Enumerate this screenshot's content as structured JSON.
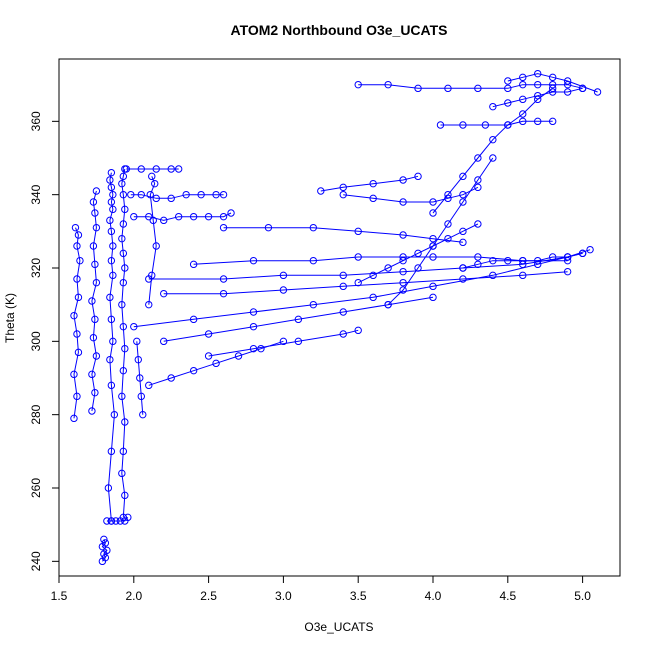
{
  "chart_data": {
    "type": "scatter",
    "title": "ATOM2 Northbound O3e_UCATS",
    "xlabel": "O3e_UCATS",
    "ylabel": "Theta (K)",
    "xlim": [
      1.5,
      5.25
    ],
    "ylim": [
      236,
      377
    ],
    "x_ticks": [
      1.5,
      2.0,
      2.5,
      3.0,
      3.5,
      4.0,
      4.5,
      5.0
    ],
    "x_tick_labels": [
      "1.5",
      "2.0",
      "2.5",
      "3.0",
      "3.5",
      "4.0",
      "4.5",
      "5.0"
    ],
    "y_ticks": [
      240,
      260,
      280,
      300,
      320,
      340,
      360
    ],
    "y_tick_labels": [
      "240",
      "260",
      "280",
      "300",
      "320",
      "340",
      "360"
    ],
    "grid": false,
    "series_color": "#0000ff",
    "series": [
      {
        "x": [
          1.85,
          1.83,
          1.85,
          1.87,
          1.85,
          1.84,
          1.86,
          1.85,
          1.84,
          1.86,
          1.85,
          1.86,
          1.85,
          1.84,
          1.86,
          1.85,
          1.86,
          1.85,
          1.84,
          1.85
        ],
        "y": [
          251,
          260,
          270,
          280,
          288,
          295,
          300,
          306,
          312,
          318,
          322,
          326,
          330,
          333,
          336,
          338,
          340,
          342,
          344,
          346
        ]
      },
      {
        "x": [
          1.93,
          1.94,
          1.92,
          1.93,
          1.94,
          1.92,
          1.93,
          1.94,
          1.93,
          1.92,
          1.93,
          1.94,
          1.93,
          1.92,
          1.93,
          1.94,
          1.93,
          1.92,
          1.93,
          1.94
        ],
        "y": [
          252,
          258,
          264,
          270,
          278,
          285,
          292,
          298,
          304,
          310,
          316,
          320,
          324,
          328,
          332,
          336,
          340,
          343,
          345,
          347
        ]
      },
      {
        "x": [
          1.6,
          1.62,
          1.6,
          1.63,
          1.62,
          1.6,
          1.63,
          1.62,
          1.64,
          1.62,
          1.63,
          1.61
        ],
        "y": [
          279,
          285,
          291,
          297,
          302,
          307,
          312,
          317,
          322,
          326,
          329,
          331
        ]
      },
      {
        "x": [
          1.72,
          1.74,
          1.72,
          1.75,
          1.73,
          1.74,
          1.72,
          1.75,
          1.74,
          1.73,
          1.75,
          1.74,
          1.73,
          1.75
        ],
        "y": [
          281,
          286,
          291,
          296,
          301,
          306,
          311,
          316,
          321,
          326,
          331,
          335,
          338,
          341
        ]
      },
      {
        "x": [
          1.79,
          1.81,
          1.8,
          1.82,
          1.79,
          1.81,
          1.8
        ],
        "y": [
          240,
          241,
          242,
          243,
          244,
          245,
          246
        ]
      },
      {
        "x": [
          1.82,
          1.85,
          1.88,
          1.91,
          1.94,
          1.96
        ],
        "y": [
          251,
          251,
          251,
          251,
          251,
          252
        ]
      },
      {
        "x": [
          1.98,
          2.05,
          2.15,
          2.25,
          2.35,
          2.45,
          2.55,
          2.6
        ],
        "y": [
          340,
          340,
          339,
          339,
          340,
          340,
          340,
          340
        ]
      },
      {
        "x": [
          1.95,
          2.05,
          2.15,
          2.25,
          2.3
        ],
        "y": [
          347,
          347,
          347,
          347,
          347
        ]
      },
      {
        "x": [
          2.0,
          2.1,
          2.2,
          2.3,
          2.4,
          2.5,
          2.6,
          2.65
        ],
        "y": [
          334,
          334,
          333,
          334,
          334,
          334,
          334,
          335
        ]
      },
      {
        "x": [
          2.02,
          2.04,
          2.06,
          2.05,
          2.03
        ],
        "y": [
          300,
          290,
          280,
          285,
          295
        ]
      },
      {
        "x": [
          2.1,
          2.12,
          2.15,
          2.13,
          2.11,
          2.14,
          2.12
        ],
        "y": [
          310,
          318,
          326,
          333,
          340,
          343,
          345
        ]
      },
      {
        "x": [
          2.5,
          2.8,
          3.1,
          3.4,
          3.5
        ],
        "y": [
          296,
          298,
          300,
          302,
          303
        ]
      },
      {
        "x": [
          2.0,
          2.4,
          2.8,
          3.2,
          3.6,
          4.0,
          4.4,
          4.7,
          4.9,
          5.0
        ],
        "y": [
          304,
          306,
          308,
          310,
          312,
          315,
          318,
          321,
          323,
          324
        ]
      },
      {
        "x": [
          2.1,
          2.6,
          3.0,
          3.4,
          3.8,
          4.2,
          4.6,
          4.9,
          5.05
        ],
        "y": [
          317,
          317,
          318,
          318,
          319,
          320,
          321,
          323,
          325
        ]
      },
      {
        "x": [
          2.2,
          2.6,
          3.0,
          3.4,
          3.8,
          4.2,
          4.6,
          4.9
        ],
        "y": [
          313,
          313,
          314,
          315,
          316,
          317,
          318,
          319
        ]
      },
      {
        "x": [
          2.4,
          2.8,
          3.2,
          3.5,
          3.8,
          4.0,
          4.3,
          4.6,
          4.9
        ],
        "y": [
          321,
          322,
          322,
          323,
          323,
          323,
          323,
          322,
          322
        ]
      },
      {
        "x": [
          2.6,
          2.9,
          3.2,
          3.5,
          3.8,
          4.0,
          4.2
        ],
        "y": [
          331,
          331,
          331,
          330,
          329,
          328,
          327
        ]
      },
      {
        "x": [
          3.5,
          3.6,
          3.7,
          3.8,
          3.9,
          4.0,
          4.1,
          4.2,
          4.3
        ],
        "y": [
          316,
          318,
          320,
          322,
          324,
          326,
          328,
          330,
          332
        ]
      },
      {
        "x": [
          3.4,
          3.6,
          3.8,
          4.0,
          4.1,
          4.2,
          4.3
        ],
        "y": [
          340,
          339,
          338,
          338,
          339,
          340,
          342
        ]
      },
      {
        "x": [
          3.25,
          3.4,
          3.6,
          3.8,
          3.9
        ],
        "y": [
          341,
          342,
          343,
          344,
          345
        ]
      },
      {
        "x": [
          3.7,
          3.8,
          3.9,
          4.0,
          4.1,
          4.2,
          4.3,
          4.4
        ],
        "y": [
          310,
          314,
          320,
          326,
          332,
          338,
          344,
          350
        ]
      },
      {
        "x": [
          4.0,
          4.1,
          4.2,
          4.3,
          4.4,
          4.5,
          4.6,
          4.7,
          4.8
        ],
        "y": [
          335,
          340,
          345,
          350,
          355,
          359,
          362,
          366,
          369
        ]
      },
      {
        "x": [
          4.05,
          4.2,
          4.35,
          4.5,
          4.6,
          4.7,
          4.8
        ],
        "y": [
          359,
          359,
          359,
          359,
          360,
          360,
          360
        ]
      },
      {
        "x": [
          3.5,
          3.7,
          3.9,
          4.1,
          4.3,
          4.5,
          4.6,
          4.7,
          4.8,
          4.9,
          5.0
        ],
        "y": [
          370,
          370,
          369,
          369,
          369,
          369,
          370,
          370,
          370,
          370,
          369
        ]
      },
      {
        "x": [
          4.5,
          4.6,
          4.7,
          4.8,
          4.9,
          5.1
        ],
        "y": [
          371,
          372,
          373,
          372,
          371,
          368
        ]
      },
      {
        "x": [
          4.4,
          4.5,
          4.6,
          4.7,
          4.8,
          4.9,
          5.0
        ],
        "y": [
          364,
          365,
          366,
          367,
          368,
          368,
          369
        ]
      },
      {
        "x": [
          4.2,
          4.3,
          4.4,
          4.5,
          4.6,
          4.7,
          4.8,
          4.9,
          5.0
        ],
        "y": [
          320,
          321,
          322,
          322,
          322,
          322,
          323,
          323,
          324
        ]
      },
      {
        "x": [
          2.1,
          2.25,
          2.4,
          2.55,
          2.7,
          2.85,
          3.0
        ],
        "y": [
          288,
          290,
          292,
          294,
          296,
          298,
          300
        ]
      },
      {
        "x": [
          2.2,
          2.5,
          2.8,
          3.1,
          3.4,
          3.7,
          4.0
        ],
        "y": [
          300,
          302,
          304,
          306,
          308,
          310,
          312
        ]
      }
    ]
  }
}
